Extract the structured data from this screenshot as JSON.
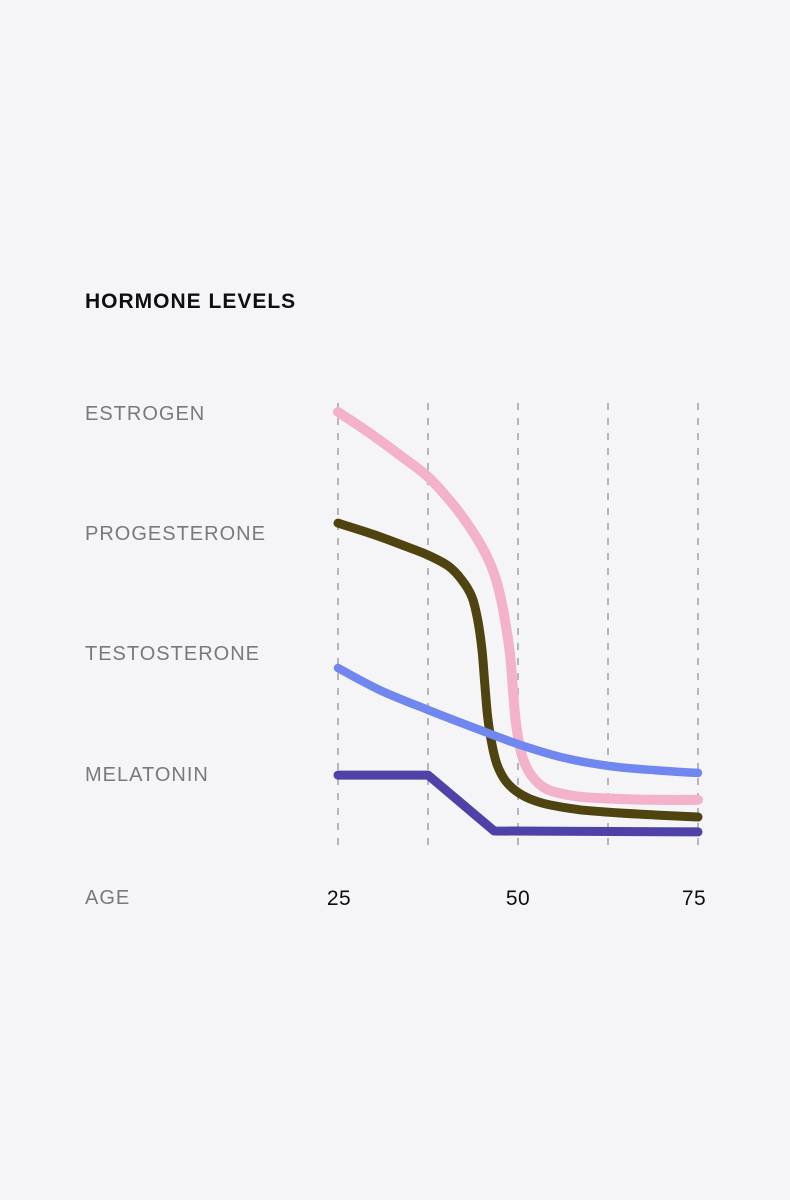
{
  "theme": {
    "background": "#f5f5f7",
    "title_color": "#0f0f10",
    "label_color": "#79797d",
    "tick_color": "#0f0f10",
    "gridline_color": "#b6b6ba"
  },
  "chart_data": {
    "type": "line",
    "title": "HORMONE LEVELS",
    "xlabel": "AGE",
    "ylabel": "",
    "x_range": [
      25,
      75
    ],
    "level_range": [
      0,
      100
    ],
    "x_ticks": [
      "25",
      "50",
      "75"
    ],
    "x_tick_ages": [
      25,
      50,
      75
    ],
    "gridline_ages": [
      25,
      37.5,
      50,
      62.5,
      75
    ],
    "grid": "dashed-vertical",
    "legend_position": "left-of-curve-start",
    "series": [
      {
        "name": "ESTROGEN",
        "color": "#f3b1cb",
        "width": 10,
        "interpolation": "smooth",
        "points": [
          [
            25,
            98.0
          ],
          [
            29.4,
            93.3
          ],
          [
            33.6,
            88.4
          ],
          [
            37.5,
            83.6
          ],
          [
            40.8,
            77.8
          ],
          [
            43.3,
            72.4
          ],
          [
            45.3,
            67.1
          ],
          [
            46.7,
            62.0
          ],
          [
            47.6,
            56.7
          ],
          [
            48.3,
            50.7
          ],
          [
            48.9,
            44.0
          ],
          [
            49.3,
            36.2
          ],
          [
            49.7,
            29.1
          ],
          [
            50.3,
            23.3
          ],
          [
            51.1,
            19.3
          ],
          [
            52.4,
            16.2
          ],
          [
            54.0,
            14.2
          ],
          [
            56.3,
            13.1
          ],
          [
            59.3,
            12.4
          ],
          [
            64.2,
            12.0
          ],
          [
            69.7,
            11.8
          ],
          [
            75,
            11.8
          ]
        ]
      },
      {
        "name": "PROGESTERONE",
        "color": "#4f440f",
        "width": 9,
        "interpolation": "smooth",
        "points": [
          [
            25,
            73.3
          ],
          [
            30.1,
            70.7
          ],
          [
            34.3,
            68.2
          ],
          [
            37.5,
            66.2
          ],
          [
            40.3,
            63.8
          ],
          [
            42.2,
            60.7
          ],
          [
            43.6,
            56.9
          ],
          [
            44.4,
            51.8
          ],
          [
            45.0,
            45.1
          ],
          [
            45.4,
            37.3
          ],
          [
            45.8,
            30.0
          ],
          [
            46.4,
            24.0
          ],
          [
            47.1,
            19.6
          ],
          [
            48.2,
            16.2
          ],
          [
            49.7,
            13.8
          ],
          [
            51.7,
            12.0
          ],
          [
            54.4,
            10.7
          ],
          [
            58.6,
            9.6
          ],
          [
            64.2,
            8.9
          ],
          [
            69.7,
            8.4
          ],
          [
            75,
            8.0
          ]
        ]
      },
      {
        "name": "TESTOSTERONE",
        "color": "#6f87ef",
        "width": 8.5,
        "interpolation": "smooth",
        "points": [
          [
            25,
            41.1
          ],
          [
            30.8,
            36.2
          ],
          [
            37.5,
            31.8
          ],
          [
            43.3,
            28.2
          ],
          [
            50,
            24.2
          ],
          [
            56.5,
            21.1
          ],
          [
            62.8,
            19.3
          ],
          [
            69,
            18.4
          ],
          [
            75,
            17.8
          ]
        ]
      },
      {
        "name": "MELATONIN",
        "color": "#4e42a8",
        "width": 9,
        "interpolation": "linear",
        "points": [
          [
            25,
            17.3
          ],
          [
            37.5,
            17.3
          ],
          [
            46.7,
            4.9
          ],
          [
            75,
            4.7
          ]
        ]
      }
    ]
  }
}
